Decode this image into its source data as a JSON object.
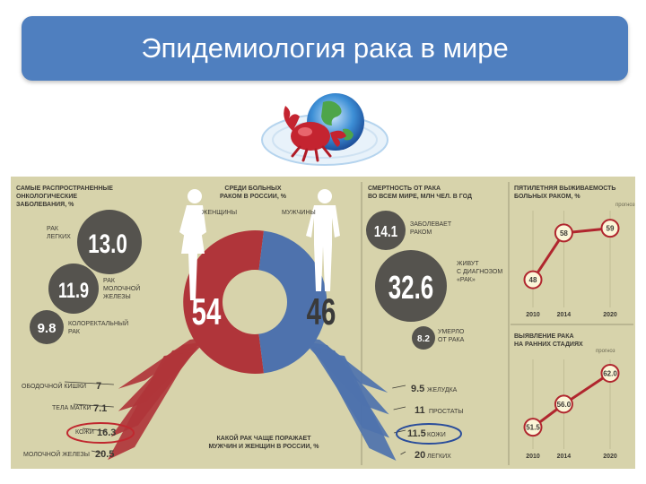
{
  "slide": {
    "title": "Эпидемиология рака в мире"
  },
  "emblem": {
    "icon": "crab-globe-icon"
  },
  "colors": {
    "female": "#b0353a",
    "male": "#4e72ad",
    "circle": "#55534e",
    "panel": "#d7d3ab",
    "accent_red": "#c0282f",
    "accent_blue": "#2a4d9b"
  },
  "common": {
    "heading": [
      "САМЫЕ РАСПРОСТРАНЕННЫЕ",
      "ОНКОЛОГИЧЕСКИЕ",
      "ЗАБОЛЕВАНИЯ, %"
    ],
    "items": [
      {
        "value": "13.0",
        "label": [
          "РАК",
          "ЛЕГКИХ"
        ]
      },
      {
        "value": "11.9",
        "label": [
          "РАК",
          "МОЛОЧНОЙ",
          "ЖЕЛЕЗЫ"
        ]
      },
      {
        "value": "9.8",
        "label": [
          "КОЛОРЕКТАЛЬНЫЙ",
          "РАК"
        ]
      }
    ]
  },
  "russia": {
    "heading": [
      "СРЕДИ БОЛЬНЫХ",
      "РАКОМ В РОССИИ, %"
    ],
    "women_label": "ЖЕНЩИНЫ",
    "men_label": "МУЖЧИНЫ",
    "women_value": "54",
    "men_value": "46",
    "bottom_caption": [
      "КАКОЙ РАК ЧАЩЕ ПОРАЖАЕТ",
      "МУЖЧИН И ЖЕНЩИН В РОССИИ, %"
    ],
    "women_sites": [
      {
        "label": "ОБОДОЧНОЙ КИШКИ",
        "value": "7"
      },
      {
        "label": "ТЕЛА МАТКИ",
        "value": "7.1"
      },
      {
        "label": "КОЖИ",
        "value": "16.3"
      },
      {
        "label": "МОЛОЧНОЙ ЖЕЛЕЗЫ",
        "value": "20.5"
      }
    ],
    "men_sites": [
      {
        "label": "ЖЕЛУДКА",
        "value": "9.5"
      },
      {
        "label": "ПРОСТАТЫ",
        "value": "11"
      },
      {
        "label": "КОЖИ",
        "value": "11.5"
      },
      {
        "label": "ЛЕГКИХ",
        "value": "20"
      }
    ]
  },
  "mortality": {
    "heading": [
      "СМЕРТНОСТЬ ОТ РАКА",
      "ВО ВСЕМ МИРЕ, МЛН ЧЕЛ. В ГОД"
    ],
    "items": [
      {
        "value": "14.1",
        "label": [
          "ЗАБОЛЕВАЕТ",
          "РАКОМ"
        ]
      },
      {
        "value": "32.6",
        "label": [
          "ЖИВУТ",
          "С ДИАГНОЗОМ",
          "«РАК»"
        ]
      },
      {
        "value": "8.2",
        "label": [
          "УМЕРЛО",
          "ОТ РАКА"
        ]
      }
    ]
  },
  "survival": {
    "heading": [
      "ПЯТИЛЕТНЯЯ ВЫЖИВАЕМОСТЬ",
      "БОЛЬНЫХ РАКОМ, %"
    ],
    "forecast": "прогноз",
    "years": [
      "2010",
      "2014",
      "2020"
    ],
    "values": [
      "48",
      "58",
      "59"
    ]
  },
  "early": {
    "heading": [
      "ВЫЯВЛЕНИЕ РАКА",
      "НА РАННИХ СТАДИЯХ"
    ],
    "forecast": "прогноз",
    "years": [
      "2010",
      "2014",
      "2020"
    ],
    "values": [
      "51.5",
      "56.0",
      "62.0"
    ]
  },
  "chart_data": [
    {
      "type": "pie",
      "title": "СРЕДИ БОЛЬНЫХ РАКОМ В РОССИИ, %",
      "categories": [
        "ЖЕНЩИНЫ",
        "МУЖЧИНЫ"
      ],
      "values": [
        54,
        46
      ]
    },
    {
      "type": "bar",
      "title": "КАКОЙ РАК ЧАЩЕ ПОРАЖАЕТ МУЖЧИН И ЖЕНЩИН В РОССИИ, %",
      "categories": [
        "ОБОДОЧНОЙ КИШКИ",
        "ТЕЛА МАТКИ",
        "КОЖИ",
        "МОЛОЧНОЙ ЖЕЛЕЗЫ"
      ],
      "series": [
        {
          "name": "ЖЕНЩИНЫ",
          "values": [
            7,
            7.1,
            16.3,
            20.5
          ]
        }
      ]
    },
    {
      "type": "bar",
      "title": "КАКОЙ РАК ЧАЩЕ ПОРАЖАЕТ МУЖЧИН И ЖЕНЩИН В РОССИИ, %",
      "categories": [
        "ЖЕЛУДКА",
        "ПРОСТАТЫ",
        "КОЖИ",
        "ЛЕГКИХ"
      ],
      "series": [
        {
          "name": "МУЖЧИНЫ",
          "values": [
            9.5,
            11,
            11.5,
            20
          ]
        }
      ]
    },
    {
      "type": "line",
      "title": "ПЯТИЛЕТНЯЯ ВЫЖИВАЕМОСТЬ БОЛЬНЫХ РАКОМ, %",
      "x": [
        2010,
        2014,
        2020
      ],
      "y": [
        48,
        58,
        59
      ],
      "ylim": [
        44,
        62
      ]
    },
    {
      "type": "line",
      "title": "ВЫЯВЛЕНИЕ РАКА НА РАННИХ СТАДИЯХ",
      "x": [
        2010,
        2014,
        2020
      ],
      "y": [
        51.5,
        56.0,
        62.0
      ],
      "ylim": [
        49,
        64
      ]
    }
  ]
}
